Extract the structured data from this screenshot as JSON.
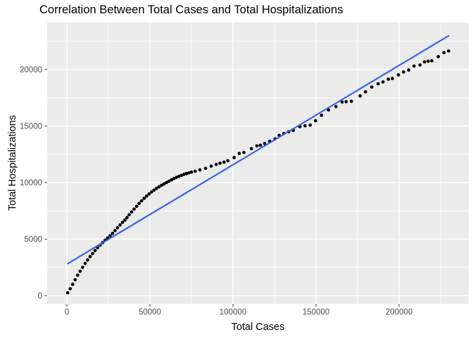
{
  "chart_data": {
    "type": "scatter",
    "title": "Correlation Between Total Cases and Total Hospitalizations",
    "xlabel": "Total Cases",
    "ylabel": "Total Hospitalizations",
    "x_ticks": [
      0,
      50000,
      100000,
      150000,
      200000
    ],
    "x_tick_labels": [
      "0",
      "50000",
      "100000",
      "150000",
      "200000"
    ],
    "x_minor_ticks": [
      25000,
      75000,
      125000,
      175000,
      225000
    ],
    "y_ticks": [
      0,
      5000,
      10000,
      15000,
      20000
    ],
    "y_tick_labels": [
      "0",
      "5000",
      "10000",
      "15000",
      "20000"
    ],
    "y_minor_ticks": [
      2500,
      7500,
      12500,
      17500,
      22500
    ],
    "xlim": [
      -11850,
      241950
    ],
    "ylim": [
      -745,
      24160
    ],
    "grid": true,
    "legend": false,
    "colors": {
      "panel_background": "#EBEBEB",
      "grid_major": "#FFFFFF",
      "grid_minor": "#FFFFFF",
      "tick_mark": "#333333",
      "tick_text": "#4D4D4D",
      "point": "#000000",
      "trend_line": "#3B64E0"
    },
    "series": [
      {
        "name": "observations",
        "geom": "point",
        "color": "#000000",
        "points": [
          [
            500,
            250
          ],
          [
            2000,
            600
          ],
          [
            3500,
            1000
          ],
          [
            5000,
            1400
          ],
          [
            6500,
            1800
          ],
          [
            8000,
            2150
          ],
          [
            9500,
            2500
          ],
          [
            11000,
            2850
          ],
          [
            12500,
            3150
          ],
          [
            14000,
            3450
          ],
          [
            15500,
            3720
          ],
          [
            17000,
            3980
          ],
          [
            18500,
            4230
          ],
          [
            20000,
            4460
          ],
          [
            21500,
            4680
          ],
          [
            23000,
            4890
          ],
          [
            24500,
            5090
          ],
          [
            26000,
            5290
          ],
          [
            27500,
            5500
          ],
          [
            29000,
            5750
          ],
          [
            30500,
            6000
          ],
          [
            32000,
            6250
          ],
          [
            33500,
            6480
          ],
          [
            35000,
            6680
          ],
          [
            36200,
            6900
          ],
          [
            37500,
            7150
          ],
          [
            39000,
            7400
          ],
          [
            40500,
            7650
          ],
          [
            42000,
            7900
          ],
          [
            43500,
            8150
          ],
          [
            45000,
            8380
          ],
          [
            46500,
            8600
          ],
          [
            48000,
            8800
          ],
          [
            49500,
            8990
          ],
          [
            51000,
            9170
          ],
          [
            52500,
            9330
          ],
          [
            54000,
            9480
          ],
          [
            55500,
            9620
          ],
          [
            57000,
            9750
          ],
          [
            58500,
            9880
          ],
          [
            60000,
            10000
          ],
          [
            61500,
            10120
          ],
          [
            63000,
            10240
          ],
          [
            64500,
            10360
          ],
          [
            66000,
            10460
          ],
          [
            67500,
            10550
          ],
          [
            69000,
            10640
          ],
          [
            70500,
            10720
          ],
          [
            72000,
            10790
          ],
          [
            73500,
            10850
          ],
          [
            75000,
            10920
          ],
          [
            77200,
            11000
          ],
          [
            80100,
            11120
          ],
          [
            83500,
            11260
          ],
          [
            86900,
            11450
          ],
          [
            89900,
            11600
          ],
          [
            92200,
            11710
          ],
          [
            94600,
            11800
          ],
          [
            96900,
            11930
          ],
          [
            100700,
            12210
          ],
          [
            103800,
            12570
          ],
          [
            106600,
            12660
          ],
          [
            111100,
            13000
          ],
          [
            114400,
            13240
          ],
          [
            116500,
            13300
          ],
          [
            119100,
            13460
          ],
          [
            122100,
            13650
          ],
          [
            125300,
            13860
          ],
          [
            127800,
            14170
          ],
          [
            130600,
            14340
          ],
          [
            133500,
            14490
          ],
          [
            136300,
            14620
          ],
          [
            140300,
            14940
          ],
          [
            143400,
            15020
          ],
          [
            146500,
            15080
          ],
          [
            149700,
            15470
          ],
          [
            153300,
            15950
          ],
          [
            157500,
            16420
          ],
          [
            162000,
            16720
          ],
          [
            165700,
            17120
          ],
          [
            168100,
            17150
          ],
          [
            171300,
            17190
          ],
          [
            176600,
            17660
          ],
          [
            179800,
            18030
          ],
          [
            183600,
            18450
          ],
          [
            187400,
            18740
          ],
          [
            190300,
            18900
          ],
          [
            193500,
            19140
          ],
          [
            195900,
            19200
          ],
          [
            199600,
            19520
          ],
          [
            202700,
            19780
          ],
          [
            205800,
            19950
          ],
          [
            209000,
            20300
          ],
          [
            212600,
            20400
          ],
          [
            215300,
            20670
          ],
          [
            217500,
            20730
          ],
          [
            219700,
            20770
          ],
          [
            223600,
            21140
          ],
          [
            227000,
            21490
          ],
          [
            229800,
            21640
          ]
        ]
      },
      {
        "name": "trend-line",
        "geom": "line",
        "color": "#3B64E0",
        "points": [
          [
            600,
            2830
          ],
          [
            229800,
            22980
          ]
        ]
      }
    ]
  }
}
